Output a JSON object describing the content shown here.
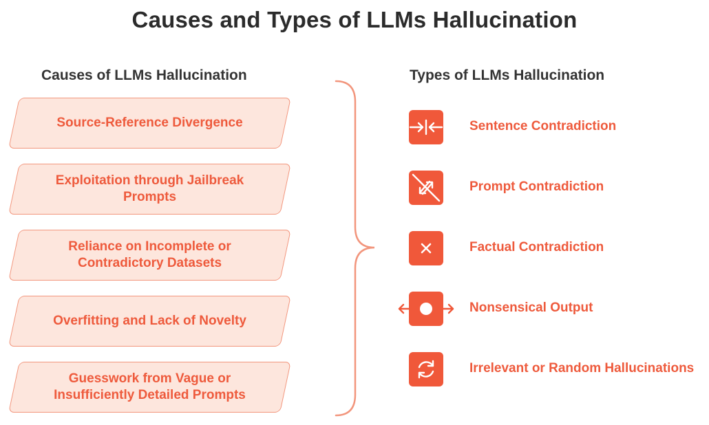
{
  "title": "Causes and Types of LLMs Hallucination",
  "causes": {
    "heading": "Causes of LLMs Hallucination",
    "items": [
      {
        "line1": "Source-Reference Divergence",
        "line2": ""
      },
      {
        "line1": "Exploitation through Jailbreak",
        "line2": "Prompts"
      },
      {
        "line1": "Reliance on Incomplete or",
        "line2": "Contradictory Datasets"
      },
      {
        "line1": "Overfitting and Lack of Novelty",
        "line2": ""
      },
      {
        "line1": "Guesswork from Vague or",
        "line2": "Insufficiently Detailed Prompts"
      }
    ]
  },
  "types": {
    "heading": "Types of LLMs Hallucination",
    "items": [
      {
        "label": "Sentence Contradiction",
        "icon": "arrows-converge-icon"
      },
      {
        "label": "Prompt Contradiction",
        "icon": "arrows-diverge-icon"
      },
      {
        "label": "Factual Contradiction",
        "icon": "x-mark-icon"
      },
      {
        "label": "Nonsensical Output",
        "icon": "dot-arrows-out-icon"
      },
      {
        "label": "Irrelevant or Random Hallucinations",
        "icon": "refresh-icon"
      }
    ]
  },
  "colors": {
    "accent": "#f0583a",
    "text_accent": "#ee5a3c",
    "cause_fill": "#fde6dd",
    "cause_border": "#f2957c",
    "title": "#2b2b2b"
  }
}
